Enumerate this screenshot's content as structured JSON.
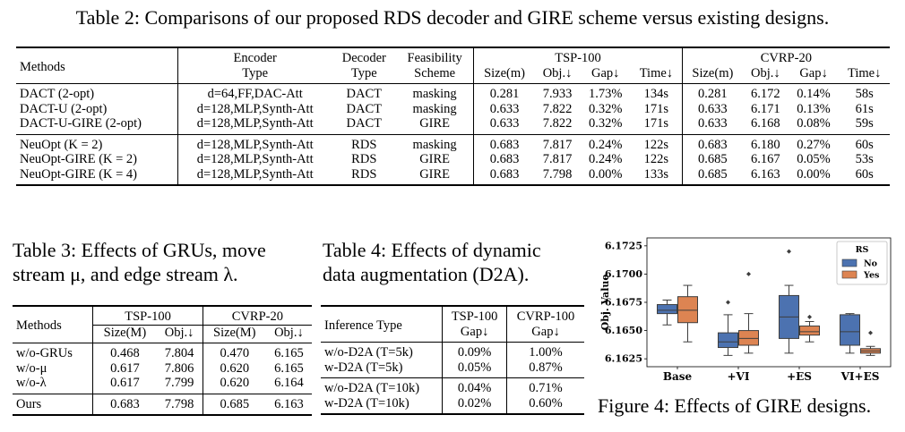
{
  "table2": {
    "caption": "Table 2: Comparisons of our proposed RDS decoder and GIRE scheme versus existing designs.",
    "headers": {
      "methods": "Methods",
      "encoder_line1": "Encoder",
      "encoder_line2": "Type",
      "decoder_line1": "Decoder",
      "decoder_line2": "Type",
      "feas_line1": "Feasibility",
      "feas_line2": "Scheme",
      "tsp_group": "TSP-100",
      "cvrp_group": "CVRP-20",
      "size": "Size(m)",
      "obj": "Obj.↓",
      "gap": "Gap↓",
      "time": "Time↓"
    },
    "rows": [
      [
        "DACT (2-opt)",
        "d=64,FF,DAC-Att",
        "DACT",
        "masking",
        "0.281",
        "7.933",
        "1.73%",
        "134s",
        "0.281",
        "6.172",
        "0.14%",
        "58s"
      ],
      [
        "DACT-U (2-opt)",
        "d=128,MLP,Synth-Att",
        "DACT",
        "masking",
        "0.633",
        "7.822",
        "0.32%",
        "171s",
        "0.633",
        "6.171",
        "0.13%",
        "61s"
      ],
      [
        "DACT-U-GIRE (2-opt)",
        "d=128,MLP,Synth-Att",
        "DACT",
        "GIRE",
        "0.633",
        "7.822",
        "0.32%",
        "171s",
        "0.633",
        "6.168",
        "0.08%",
        "59s"
      ],
      [
        "NeuOpt (K = 2)",
        "d=128,MLP,Synth-Att",
        "RDS",
        "masking",
        "0.683",
        "7.817",
        "0.24%",
        "122s",
        "0.683",
        "6.180",
        "0.27%",
        "60s"
      ],
      [
        "NeuOpt-GIRE (K = 2)",
        "d=128,MLP,Synth-Att",
        "RDS",
        "GIRE",
        "0.683",
        "7.817",
        "0.24%",
        "122s",
        "0.685",
        "6.167",
        "0.05%",
        "53s"
      ],
      [
        "NeuOpt-GIRE (K = 4)",
        "d=128,MLP,Synth-Att",
        "RDS",
        "GIRE",
        "0.683",
        "7.798",
        "0.00%",
        "133s",
        "0.685",
        "6.163",
        "0.00%",
        "60s"
      ]
    ]
  },
  "table3": {
    "caption_line1": "Table 3: Effects of GRUs, move",
    "caption_line2": "stream μ, and edge stream λ.",
    "headers": {
      "methods": "Methods",
      "tsp_group": "TSP-100",
      "cvrp_group": "CVRP-20",
      "size": "Size(M)",
      "obj": "Obj.↓"
    },
    "rows": [
      [
        "w/o-GRUs",
        "0.468",
        "7.804",
        "0.470",
        "6.165"
      ],
      [
        "w/o-μ",
        "0.617",
        "7.806",
        "0.620",
        "6.165"
      ],
      [
        "w/o-λ",
        "0.617",
        "7.799",
        "0.620",
        "6.164"
      ],
      [
        "Ours",
        "0.683",
        "7.798",
        "0.685",
        "6.163"
      ]
    ]
  },
  "table4": {
    "caption_line1": "Table 4: Effects of dynamic",
    "caption_line2": "data augmentation (D2A).",
    "headers": {
      "inference": "Inference Type",
      "tsp_group": "TSP-100",
      "cvrp_group": "CVRP-100",
      "gap": "Gap↓"
    },
    "rows": [
      [
        "w/o-D2A (T=5k)",
        "0.09%",
        "1.00%"
      ],
      [
        "w-D2A (T=5k)",
        "0.05%",
        "0.87%"
      ],
      [
        "w/o-D2A (T=10k)",
        "0.04%",
        "0.71%"
      ],
      [
        "w-D2A (T=10k)",
        "0.02%",
        "0.60%"
      ]
    ]
  },
  "figure4": {
    "caption": "Figure 4: Effects of GIRE designs.",
    "chart_data": {
      "type": "boxplot",
      "title": "",
      "xlabel": "",
      "ylabel": "Obj. Value",
      "ylim": [
        6.1618,
        6.1732
      ],
      "yticks": [
        "6.1625",
        "6.1650",
        "6.1675",
        "6.1700",
        "6.1725"
      ],
      "categories": [
        "Base",
        "+VI",
        "+ES",
        "VI+ES"
      ],
      "legend": {
        "title": "RS",
        "entries": [
          "No",
          "Yes"
        ],
        "position": "top-right"
      },
      "series": [
        {
          "name": "No",
          "color": "#4c72b0",
          "boxes": [
            {
              "q1": 6.1665,
              "median": 6.1668,
              "q3": 6.1673,
              "whisker_low": 6.1655,
              "whisker_high": 6.1677,
              "outliers": []
            },
            {
              "q1": 6.1635,
              "median": 6.164,
              "q3": 6.1648,
              "whisker_low": 6.1628,
              "whisker_high": 6.1664,
              "outliers": [
                6.1675
              ]
            },
            {
              "q1": 6.1643,
              "median": 6.1662,
              "q3": 6.1681,
              "whisker_low": 6.163,
              "whisker_high": 6.169,
              "outliers": [
                6.172
              ]
            },
            {
              "q1": 6.1637,
              "median": 6.1649,
              "q3": 6.1664,
              "whisker_low": 6.163,
              "whisker_high": 6.1665,
              "outliers": []
            }
          ]
        },
        {
          "name": "Yes",
          "color": "#dd8452",
          "boxes": [
            {
              "q1": 6.1657,
              "median": 6.1668,
              "q3": 6.168,
              "whisker_low": 6.164,
              "whisker_high": 6.169,
              "outliers": []
            },
            {
              "q1": 6.1637,
              "median": 6.1643,
              "q3": 6.165,
              "whisker_low": 6.163,
              "whisker_high": 6.1665,
              "outliers": [
                6.17
              ]
            },
            {
              "q1": 6.1646,
              "median": 6.1649,
              "q3": 6.1654,
              "whisker_low": 6.164,
              "whisker_high": 6.1658,
              "outliers": [
                6.1662
              ]
            },
            {
              "q1": 6.163,
              "median": 6.1632,
              "q3": 6.1634,
              "whisker_low": 6.1628,
              "whisker_high": 6.1636,
              "outliers": [
                6.1648
              ]
            }
          ]
        }
      ]
    }
  }
}
